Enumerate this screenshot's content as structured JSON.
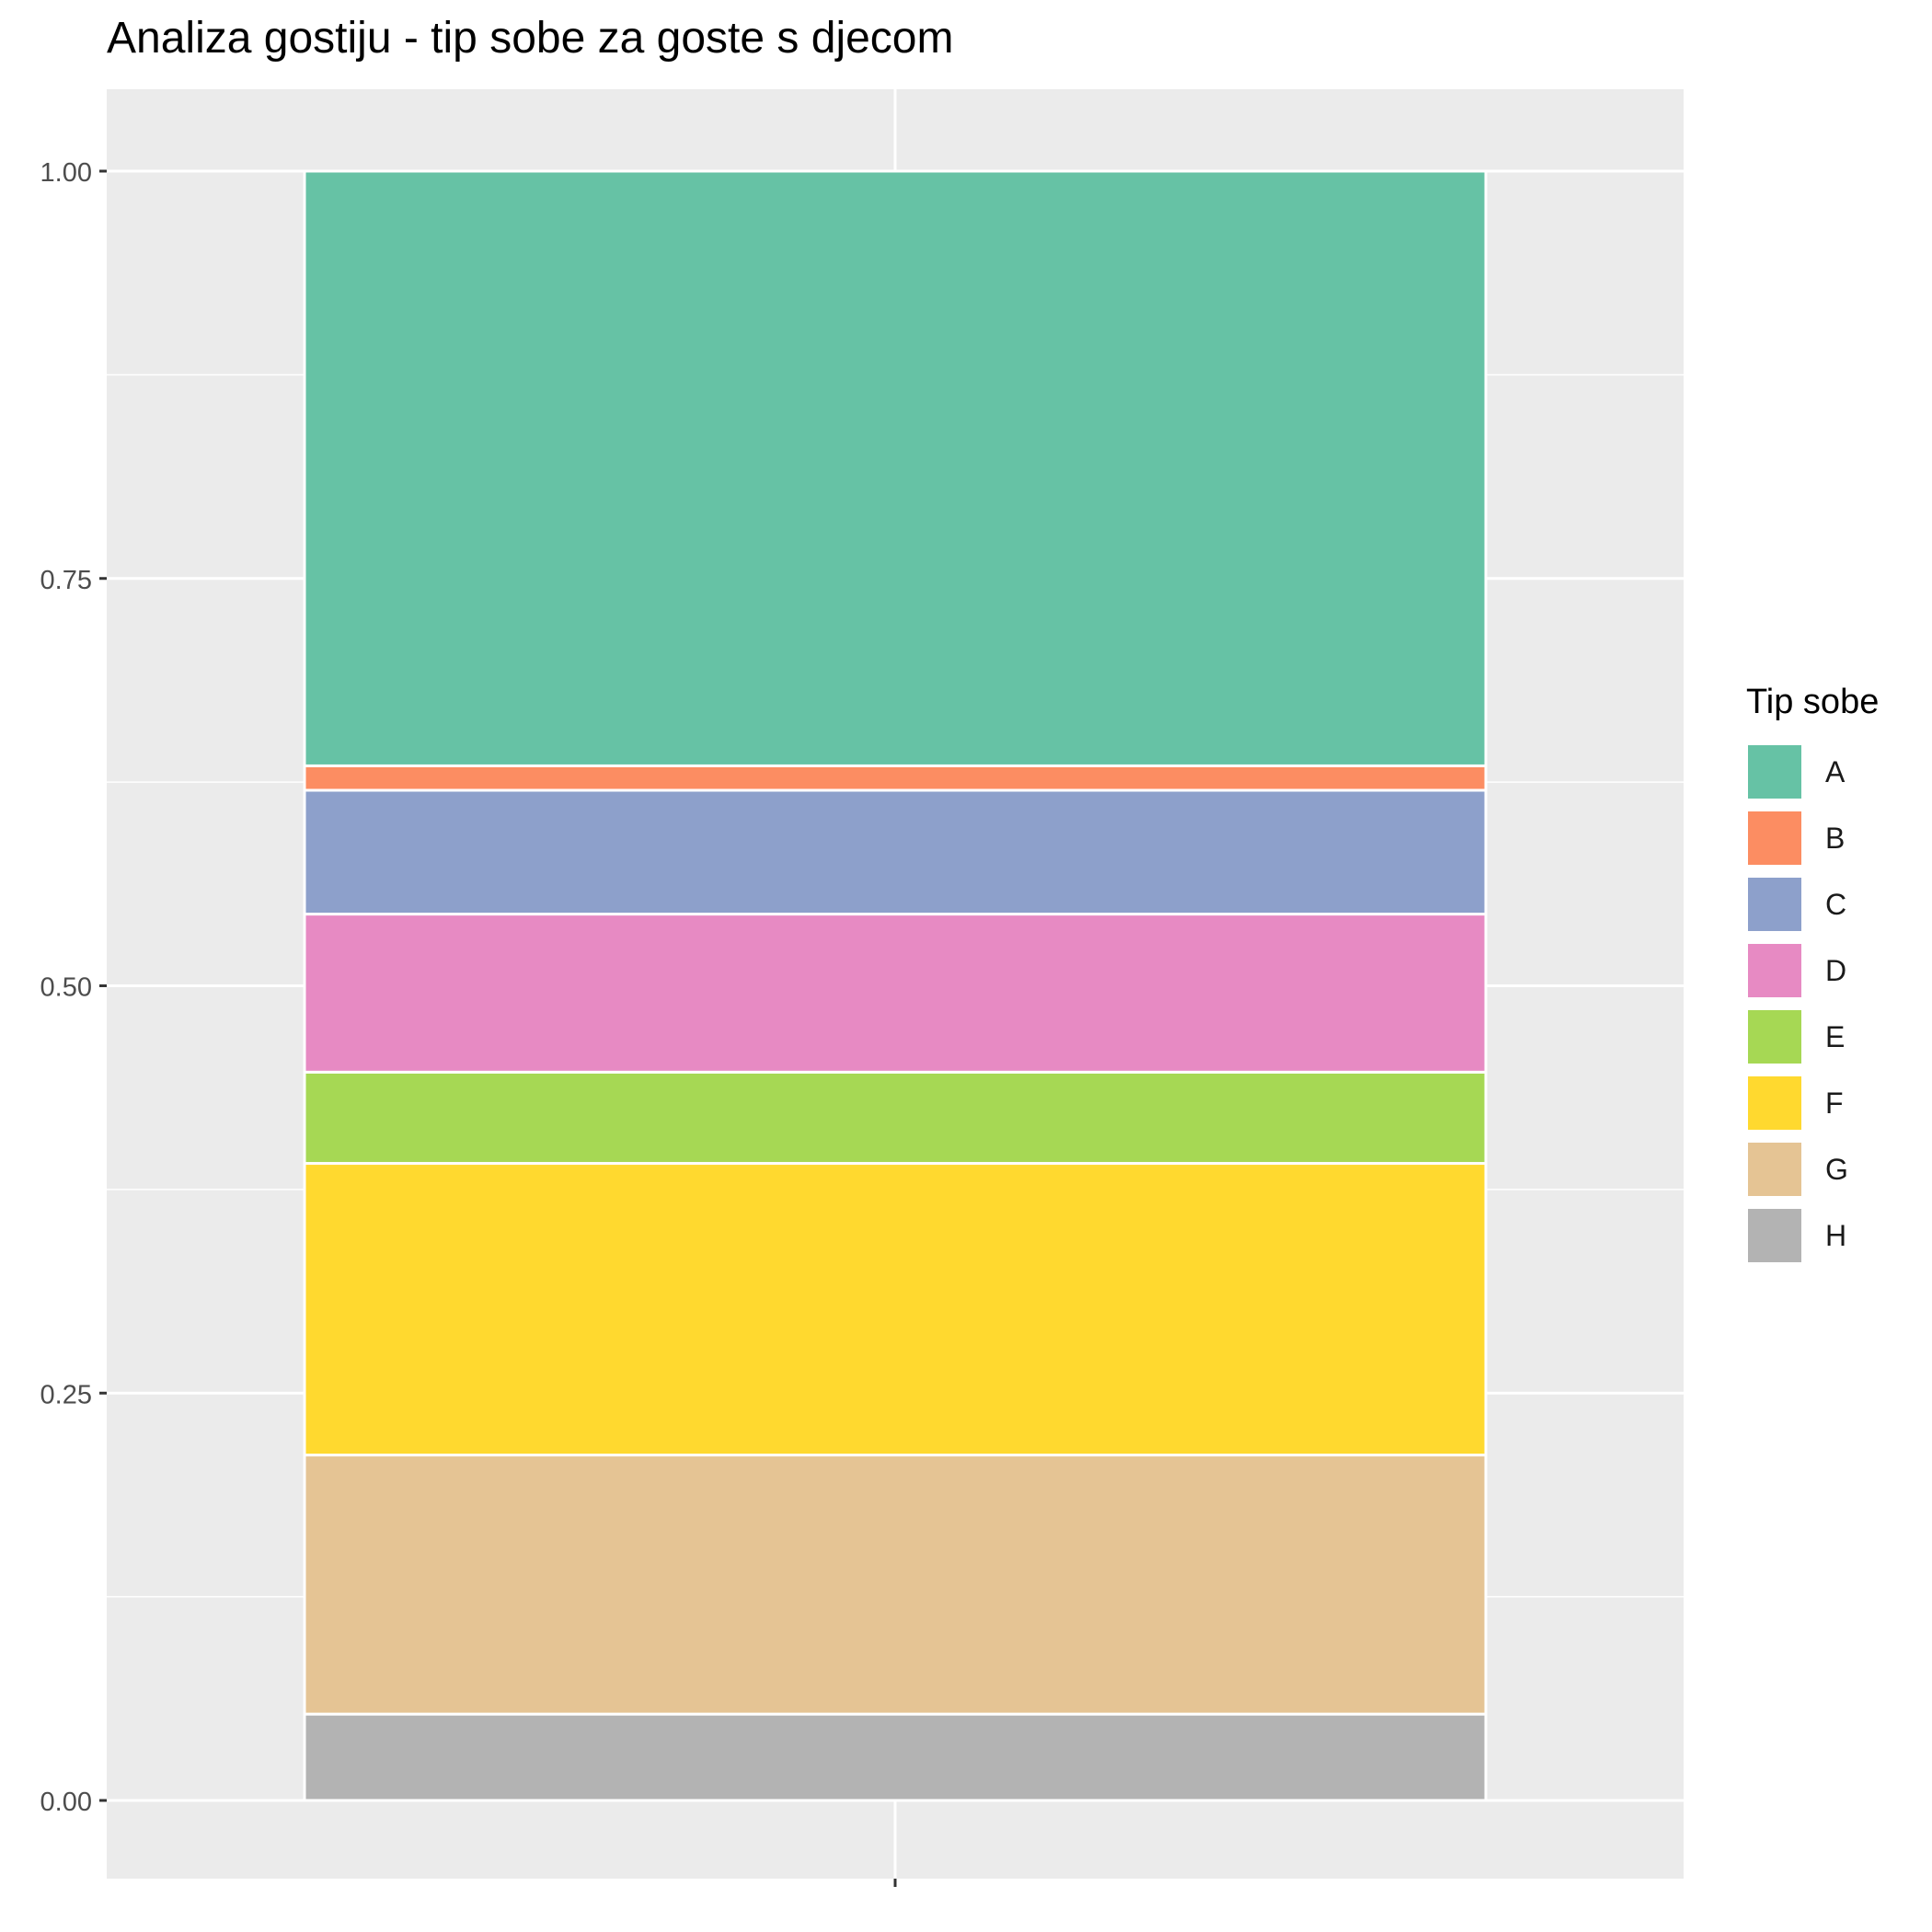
{
  "chart_data": {
    "type": "bar",
    "stacked": true,
    "title": "Analiza gostiju - tip sobe za goste s djecom",
    "xlabel": "",
    "ylabel": "",
    "categories": [
      ""
    ],
    "ylim": [
      0,
      1
    ],
    "yticks": [
      "0.00",
      "0.25",
      "0.50",
      "0.75",
      "1.00"
    ],
    "grid": true,
    "legend_position": "right",
    "legend_title": "Tip sobe",
    "series": [
      {
        "name": "A",
        "values": [
          0.365
        ],
        "color": "#66C2A5"
      },
      {
        "name": "B",
        "values": [
          0.015
        ],
        "color": "#FC8D62"
      },
      {
        "name": "C",
        "values": [
          0.076
        ],
        "color": "#8DA0CB"
      },
      {
        "name": "D",
        "values": [
          0.097
        ],
        "color": "#E78AC3"
      },
      {
        "name": "E",
        "values": [
          0.056
        ],
        "color": "#A6D854"
      },
      {
        "name": "F",
        "values": [
          0.179
        ],
        "color": "#FFD92F"
      },
      {
        "name": "G",
        "values": [
          0.159
        ],
        "color": "#E5C494"
      },
      {
        "name": "H",
        "values": [
          0.053
        ],
        "color": "#B3B3B3"
      }
    ]
  }
}
